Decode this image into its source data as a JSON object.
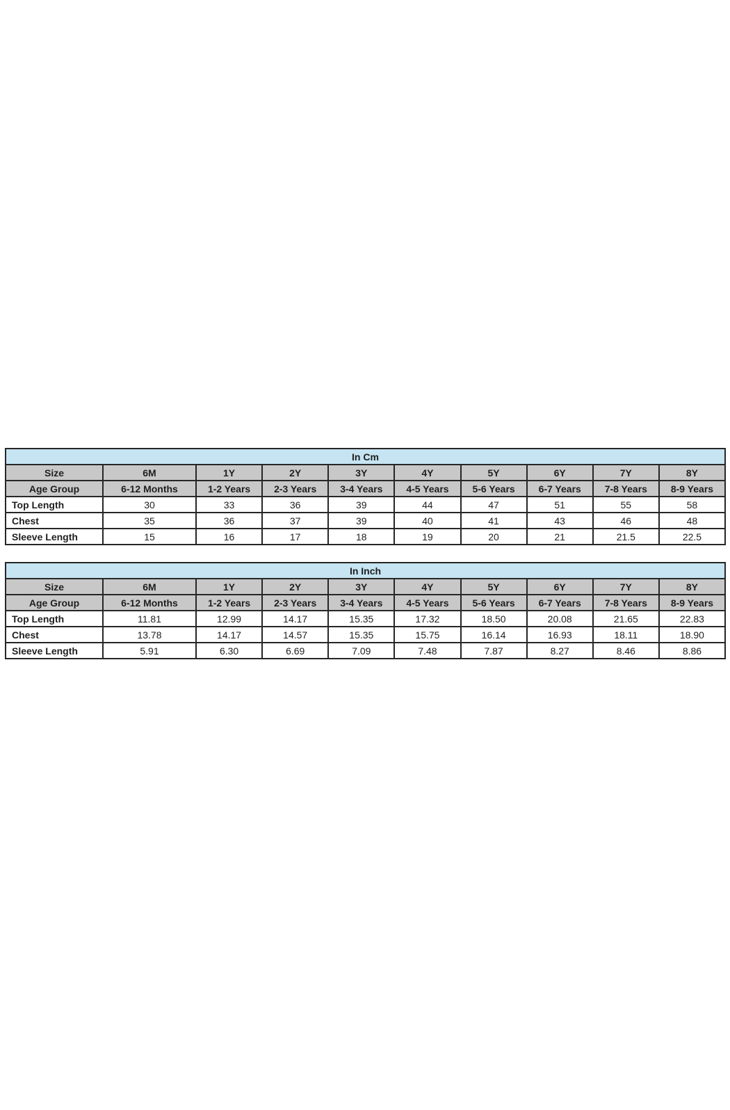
{
  "colors": {
    "title_bg": "#c6e4f2",
    "header_bg": "#c8c8c8",
    "border": "#262626",
    "text": "#1f1f1f",
    "page_background": "#ffffff"
  },
  "chart_data": [
    {
      "type": "table",
      "title": "In Cm",
      "columns": [
        "Size",
        "6M",
        "1Y",
        "2Y",
        "3Y",
        "4Y",
        "5Y",
        "6Y",
        "7Y",
        "8Y"
      ],
      "rows": [
        [
          "Age Group",
          "6-12 Months",
          "1-2 Years",
          "2-3 Years",
          "3-4 Years",
          "4-5 Years",
          "5-6 Years",
          "6-7 Years",
          "7-8 Years",
          "8-9 Years"
        ],
        [
          "Top Length",
          "30",
          "33",
          "36",
          "39",
          "44",
          "47",
          "51",
          "55",
          "58"
        ],
        [
          "Chest",
          "35",
          "36",
          "37",
          "39",
          "40",
          "41",
          "43",
          "46",
          "48"
        ],
        [
          "Sleeve Length",
          "15",
          "16",
          "17",
          "18",
          "19",
          "20",
          "21",
          "21.5",
          "22.5"
        ]
      ]
    },
    {
      "type": "table",
      "title": "In Inch",
      "columns": [
        "Size",
        "6M",
        "1Y",
        "2Y",
        "3Y",
        "4Y",
        "5Y",
        "6Y",
        "7Y",
        "8Y"
      ],
      "rows": [
        [
          "Age Group",
          "6-12 Months",
          "1-2 Years",
          "2-3 Years",
          "3-4 Years",
          "4-5 Years",
          "5-6 Years",
          "6-7 Years",
          "7-8 Years",
          "8-9 Years"
        ],
        [
          "Top Length",
          "11.81",
          "12.99",
          "14.17",
          "15.35",
          "17.32",
          "18.50",
          "20.08",
          "21.65",
          "22.83"
        ],
        [
          "Chest",
          "13.78",
          "14.17",
          "14.57",
          "15.35",
          "15.75",
          "16.14",
          "16.93",
          "18.11",
          "18.90"
        ],
        [
          "Sleeve Length",
          "5.91",
          "6.30",
          "6.69",
          "7.09",
          "7.48",
          "7.87",
          "8.27",
          "8.46",
          "8.86"
        ]
      ]
    }
  ]
}
